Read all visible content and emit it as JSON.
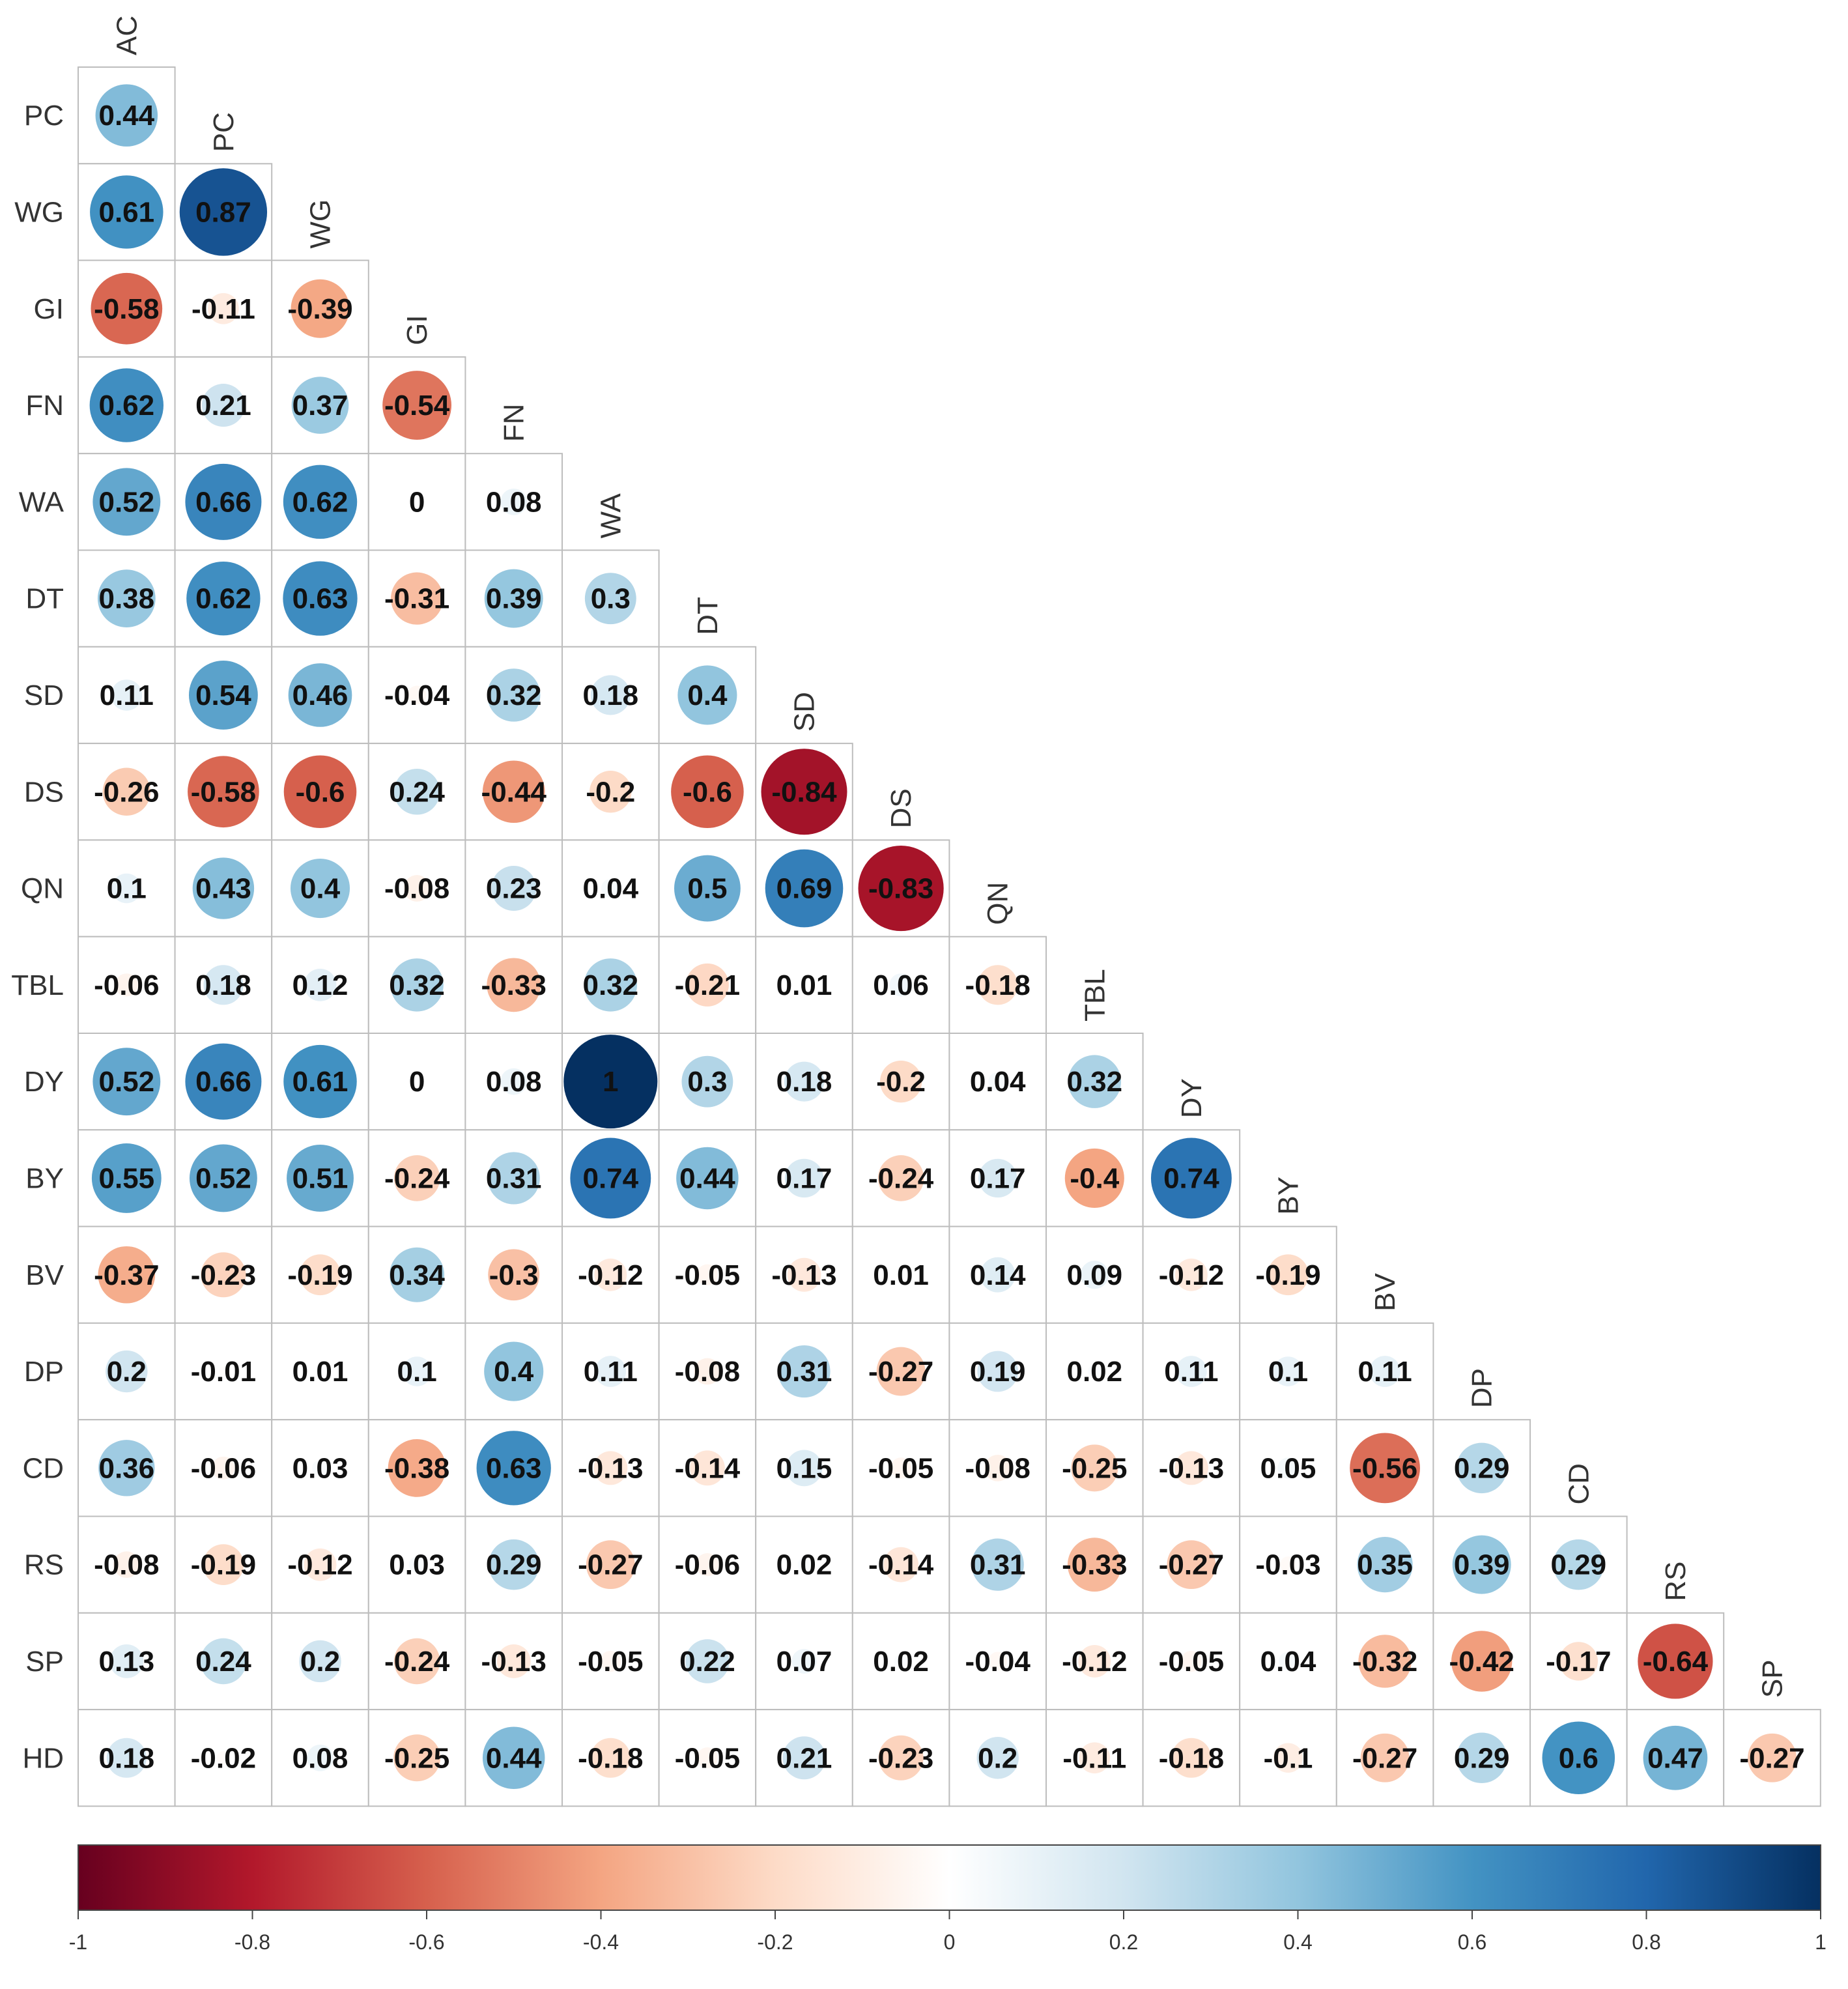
{
  "chart_data": {
    "type": "heatmap",
    "subtype": "correlation-matrix-lower-triangle-circles",
    "variables": [
      "AC",
      "PC",
      "WG",
      "GI",
      "FN",
      "WA",
      "DT",
      "SD",
      "DS",
      "QN",
      "TBL",
      "DY",
      "BY",
      "BV",
      "DP",
      "CD",
      "RS",
      "SP",
      "HD"
    ],
    "row_labels": [
      "PC",
      "WG",
      "GI",
      "FN",
      "WA",
      "DT",
      "SD",
      "DS",
      "QN",
      "TBL",
      "DY",
      "BY",
      "BV",
      "DP",
      "CD",
      "RS",
      "SP",
      "HD"
    ],
    "column_labels": [
      "AC",
      "PC",
      "WG",
      "GI",
      "FN",
      "WA",
      "DT",
      "SD",
      "DS",
      "QN",
      "TBL",
      "DY",
      "BY",
      "BV",
      "DP",
      "CD",
      "RS",
      "SP"
    ],
    "values": [
      [
        0.44
      ],
      [
        0.61,
        0.87
      ],
      [
        -0.58,
        -0.11,
        -0.39
      ],
      [
        0.62,
        0.21,
        0.37,
        -0.54
      ],
      [
        0.52,
        0.66,
        0.62,
        0,
        0.08
      ],
      [
        0.38,
        0.62,
        0.63,
        -0.31,
        0.39,
        0.3
      ],
      [
        0.11,
        0.54,
        0.46,
        -0.04,
        0.32,
        0.18,
        0.4
      ],
      [
        -0.26,
        -0.58,
        -0.6,
        0.24,
        -0.44,
        -0.2,
        -0.6,
        -0.84
      ],
      [
        0.1,
        0.43,
        0.4,
        -0.08,
        0.23,
        0.04,
        0.5,
        0.69,
        -0.83
      ],
      [
        -0.06,
        0.18,
        0.12,
        0.32,
        -0.33,
        0.32,
        -0.21,
        0.01,
        0.06,
        -0.18
      ],
      [
        0.52,
        0.66,
        0.61,
        0,
        0.08,
        1,
        0.3,
        0.18,
        -0.2,
        0.04,
        0.32
      ],
      [
        0.55,
        0.52,
        0.51,
        -0.24,
        0.31,
        0.74,
        0.44,
        0.17,
        -0.24,
        0.17,
        -0.4,
        0.74
      ],
      [
        -0.37,
        -0.23,
        -0.19,
        0.34,
        -0.3,
        -0.12,
        -0.05,
        -0.13,
        0.01,
        0.14,
        0.09,
        -0.12,
        -0.19
      ],
      [
        0.2,
        -0.01,
        0.01,
        0.1,
        0.4,
        0.11,
        -0.08,
        0.31,
        -0.27,
        0.19,
        0.02,
        0.11,
        0.1,
        0.11
      ],
      [
        0.36,
        -0.06,
        0.03,
        -0.38,
        0.63,
        -0.13,
        -0.14,
        0.15,
        -0.05,
        -0.08,
        -0.25,
        -0.13,
        0.05,
        -0.56,
        0.29
      ],
      [
        -0.08,
        -0.19,
        -0.12,
        0.03,
        0.29,
        -0.27,
        -0.06,
        0.02,
        -0.14,
        0.31,
        -0.33,
        -0.27,
        -0.03,
        0.35,
        0.39,
        0.29
      ],
      [
        0.13,
        0.24,
        0.2,
        -0.24,
        -0.13,
        -0.05,
        0.22,
        0.07,
        0.02,
        -0.04,
        -0.12,
        -0.05,
        0.04,
        -0.32,
        -0.42,
        -0.17,
        -0.64
      ],
      [
        0.18,
        -0.02,
        0.08,
        -0.25,
        0.44,
        -0.18,
        -0.05,
        0.21,
        -0.23,
        0.2,
        -0.11,
        -0.18,
        -0.1,
        -0.27,
        0.29,
        0.6,
        0.47,
        -0.27
      ]
    ],
    "colorbar": {
      "range": [
        -1,
        1
      ],
      "ticks": [
        -1,
        -0.8,
        -0.6,
        -0.4,
        -0.2,
        0,
        0.2,
        0.4,
        0.6,
        0.8,
        1
      ],
      "tick_labels": [
        "-1",
        "-0.8",
        "-0.6",
        "-0.4",
        "-0.2",
        "0",
        "0.2",
        "0.4",
        "0.6",
        "0.8",
        "1"
      ],
      "placement": "bottom"
    },
    "palette": [
      "#67001F",
      "#B2182B",
      "#D6604D",
      "#F4A582",
      "#FDDBC7",
      "#FFFFFF",
      "#D1E5F0",
      "#92C5DE",
      "#4393C3",
      "#2166AC",
      "#053061"
    ],
    "grid": true
  }
}
